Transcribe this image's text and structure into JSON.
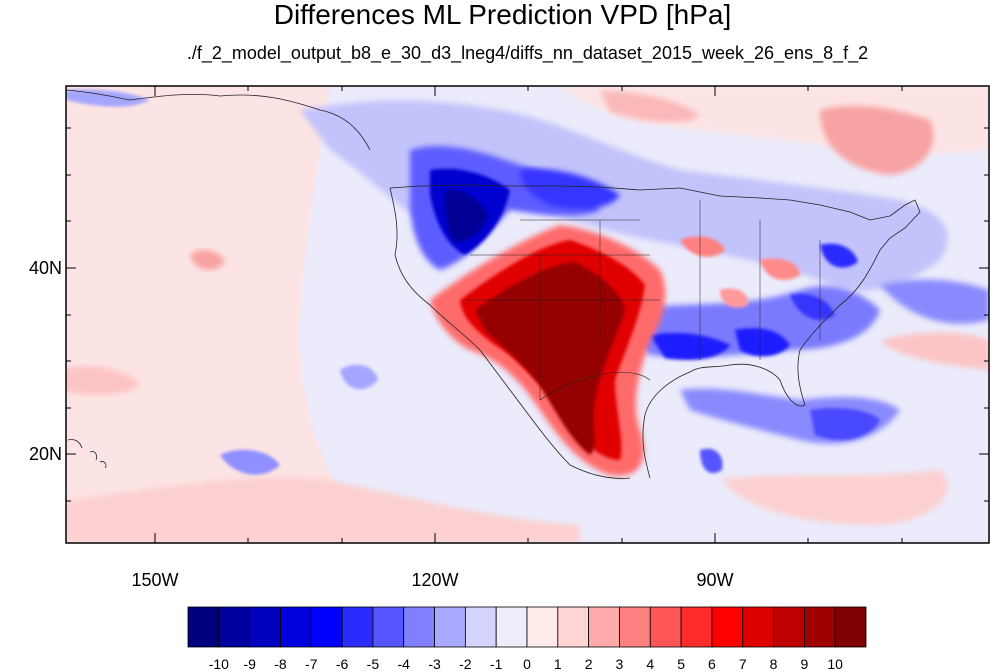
{
  "title": "Differences ML Prediction VPD [hPa]",
  "subtitle": "./f_2_model_output_b8_e_30_d3_lneg4/diffs_nn_dataset_2015_week_26_ens_8_f_2",
  "axes": {
    "lat_labels": [
      "40N",
      "20N"
    ],
    "lon_labels": [
      "150W",
      "120W",
      "90W"
    ]
  },
  "colorbar": {
    "labels": [
      "-10",
      "-9",
      "-8",
      "-7",
      "-6",
      "-5",
      "-4",
      "-3",
      "-2",
      "-1",
      "0",
      "1",
      "2",
      "3",
      "4",
      "5",
      "6",
      "7",
      "8",
      "9",
      "10"
    ],
    "colors": [
      "#00007f",
      "#00009f",
      "#0000bf",
      "#0000df",
      "#0000ff",
      "#2b2bff",
      "#5555ff",
      "#8080ff",
      "#aaaaff",
      "#d4d4ff",
      "#ececfb",
      "#ffeaea",
      "#ffd4d4",
      "#ffaaaa",
      "#ff8080",
      "#ff5555",
      "#ff2b2b",
      "#ff0000",
      "#df0000",
      "#bf0000",
      "#9f0000",
      "#7f0000"
    ]
  },
  "colors": {
    "background_neutral": "#ebebfb",
    "pacific_warm": "#fde4e4"
  }
}
